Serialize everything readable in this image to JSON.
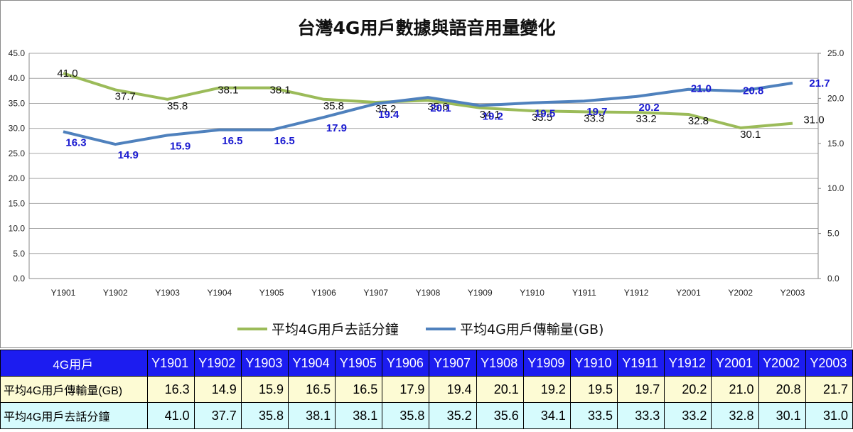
{
  "chart_data": {
    "type": "line",
    "title": "台灣4G用戶數據與語音用量變化",
    "categories": [
      "Y1901",
      "Y1902",
      "Y1903",
      "Y1904",
      "Y1905",
      "Y1906",
      "Y1907",
      "Y1908",
      "Y1909",
      "Y1910",
      "Y1911",
      "Y1912",
      "Y2001",
      "Y2002",
      "Y2003"
    ],
    "series": [
      {
        "name": "平均4G用戶去話分鐘",
        "axis": "left",
        "color": "#9bbb59",
        "values": [
          41.0,
          37.7,
          35.8,
          38.1,
          38.1,
          35.8,
          35.2,
          35.6,
          34.1,
          33.5,
          33.3,
          33.2,
          32.8,
          30.1,
          31.0
        ]
      },
      {
        "name": "平均4G用戶傳輸量(GB)",
        "axis": "right",
        "color": "#4f81bd",
        "values": [
          16.3,
          14.9,
          15.9,
          16.5,
          16.5,
          17.9,
          19.4,
          20.1,
          19.2,
          19.5,
          19.7,
          20.2,
          21.0,
          20.8,
          21.7
        ]
      }
    ],
    "y_left": {
      "min": 0,
      "max": 45,
      "ticks": [
        "0.0",
        "5.0",
        "10.0",
        "15.0",
        "20.0",
        "25.0",
        "30.0",
        "35.0",
        "40.0",
        "45.0"
      ]
    },
    "y_right": {
      "min": 0,
      "max": 25,
      "ticks": [
        "0.0",
        "5.0",
        "10.0",
        "15.0",
        "20.0",
        "25.0"
      ]
    },
    "grid": true,
    "legend": "bottom"
  },
  "table": {
    "header_label": "4G用戶",
    "rows": [
      {
        "label": "平均4G用戶傳輸量(GB)",
        "values": [
          "16.3",
          "14.9",
          "15.9",
          "16.5",
          "16.5",
          "17.9",
          "19.4",
          "20.1",
          "19.2",
          "19.5",
          "19.7",
          "20.2",
          "21.0",
          "20.8",
          "21.7"
        ]
      },
      {
        "label": "平均4G用戶去話分鐘",
        "values": [
          "41.0",
          "37.7",
          "35.8",
          "38.1",
          "38.1",
          "35.8",
          "35.2",
          "35.6",
          "34.1",
          "33.5",
          "33.3",
          "33.2",
          "32.8",
          "30.1",
          "31.0"
        ]
      }
    ]
  },
  "colors": {
    "header_bg": "#1c1cf0",
    "row_a_bg": "#fdfbd4",
    "row_b_bg": "#d6fbfd",
    "blue_label": "#1a1ad0"
  }
}
